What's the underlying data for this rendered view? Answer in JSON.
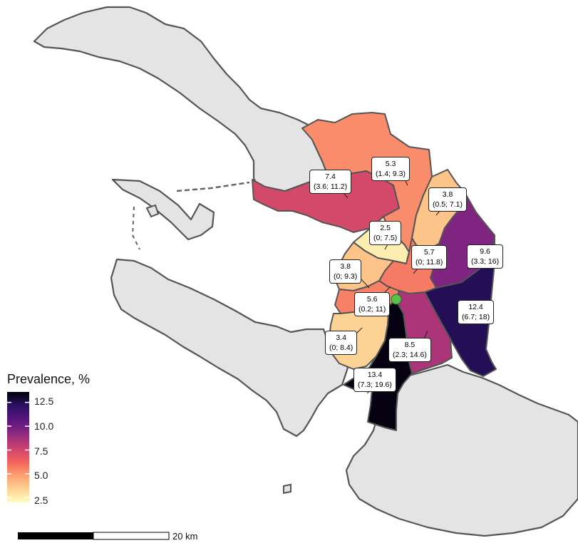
{
  "legend": {
    "title": "Prevalence, %",
    "ticks": [
      "12.5",
      "10.0",
      "7.5",
      "5.0",
      "2.5"
    ],
    "range": [
      2.0,
      13.6
    ],
    "gradient": [
      "#fcfdbf",
      "#fdd193",
      "#fc9d6f",
      "#f1605d",
      "#c8406f",
      "#8c2981",
      "#57157e",
      "#2b1167",
      "#000004"
    ]
  },
  "scale_bar": {
    "label": "20 km"
  },
  "marker": {
    "color": "#56c24a"
  },
  "map_data": {
    "land_color": "#e4e4e4",
    "districts": [
      {
        "id": "north-upper",
        "value": 5.3,
        "ci": "(1.4; 9.3)",
        "label": "5.3",
        "interval": "(1.4; 9.3)"
      },
      {
        "id": "north-west",
        "value": 7.4,
        "label": "7.4",
        "interval": "(3.6; 11.2)"
      },
      {
        "id": "north-east",
        "value": 3.8,
        "label": "3.8",
        "interval": "(0.5; 7.1)"
      },
      {
        "id": "center",
        "value": 2.5,
        "label": "2.5",
        "interval": "(0; 7.5)"
      },
      {
        "id": "east",
        "value": 9.6,
        "label": "9.6",
        "interval": "(3.3; 16)"
      },
      {
        "id": "center-south",
        "value": 5.7,
        "label": "5.7",
        "interval": "(0; 11.8)"
      },
      {
        "id": "west",
        "value": 3.8,
        "label": "3.8",
        "interval": "(0; 9.3)"
      },
      {
        "id": "south-east",
        "value": 12.4,
        "label": "12.4",
        "interval": "(6.7; 18)"
      },
      {
        "id": "admiralty",
        "value": 5.6,
        "label": "5.6",
        "interval": "(0.2; 11)"
      },
      {
        "id": "south-center",
        "value": 8.5,
        "label": "8.5",
        "interval": "(2.3; 14.6)"
      },
      {
        "id": "south-west",
        "value": 3.4,
        "label": "3.4",
        "interval": "(0; 8.4)"
      },
      {
        "id": "south",
        "value": 13.4,
        "label": "13.4",
        "interval": "(7.3; 19.6)"
      }
    ]
  }
}
